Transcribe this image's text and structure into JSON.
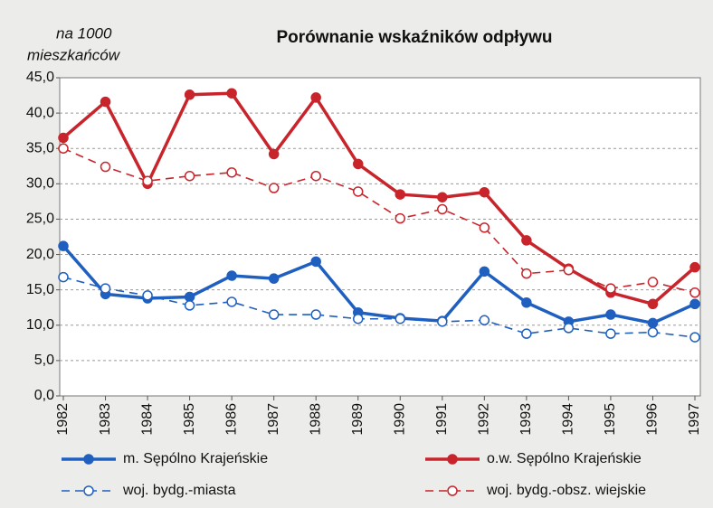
{
  "chart_data": {
    "type": "line",
    "title": "Porównanie wskaźników odpływu",
    "ylabel": [
      "na 1000",
      "mieszkańców"
    ],
    "categories": [
      "1982",
      "1983",
      "1984",
      "1985",
      "1986",
      "1987",
      "1988",
      "1989",
      "1990",
      "1991",
      "1992",
      "1993",
      "1994",
      "1995",
      "1996",
      "1997"
    ],
    "series": [
      {
        "name": "m. Sępólno Krajeńskie",
        "color": "#1f5fbf",
        "dashed": false,
        "filled_markers": true,
        "values": [
          21.2,
          14.4,
          13.8,
          14.0,
          17.0,
          16.6,
          19.0,
          11.8,
          11.0,
          10.6,
          17.6,
          13.2,
          10.5,
          11.5,
          10.3,
          13.0
        ]
      },
      {
        "name": "o.w. Sępólno Krajeńskie",
        "color": "#c8242b",
        "dashed": false,
        "filled_markers": true,
        "values": [
          36.5,
          41.6,
          30.0,
          42.6,
          42.8,
          34.2,
          42.2,
          32.8,
          28.5,
          28.1,
          28.8,
          22.0,
          18.0,
          14.6,
          13.0,
          18.2
        ]
      },
      {
        "name": "woj. bydg.-miasta",
        "color": "#1f5fbf",
        "dashed": true,
        "filled_markers": false,
        "values": [
          16.8,
          15.2,
          14.2,
          12.8,
          13.3,
          11.5,
          11.5,
          10.9,
          10.9,
          10.5,
          10.7,
          8.8,
          9.6,
          8.8,
          9.0,
          8.3
        ]
      },
      {
        "name": "woj. bydg.-obsz. wiejskie",
        "color": "#c8242b",
        "dashed": true,
        "filled_markers": false,
        "values": [
          35.0,
          32.4,
          30.4,
          31.1,
          31.6,
          29.4,
          31.1,
          28.9,
          25.1,
          26.4,
          23.8,
          17.3,
          17.8,
          15.2,
          16.1,
          14.6
        ]
      }
    ],
    "ylim": [
      0,
      45
    ],
    "yticks": [
      {
        "value": 0,
        "label": "0,0"
      },
      {
        "value": 5,
        "label": "5,0"
      },
      {
        "value": 10,
        "label": "10,0"
      },
      {
        "value": 15,
        "label": "15,0"
      },
      {
        "value": 20,
        "label": "20,0"
      },
      {
        "value": 25,
        "label": "25,0"
      },
      {
        "value": 30,
        "label": "30,0"
      },
      {
        "value": 35,
        "label": "35,0"
      },
      {
        "value": 40,
        "label": "40,0"
      },
      {
        "value": 45,
        "label": "45,0"
      }
    ],
    "grid": true
  }
}
